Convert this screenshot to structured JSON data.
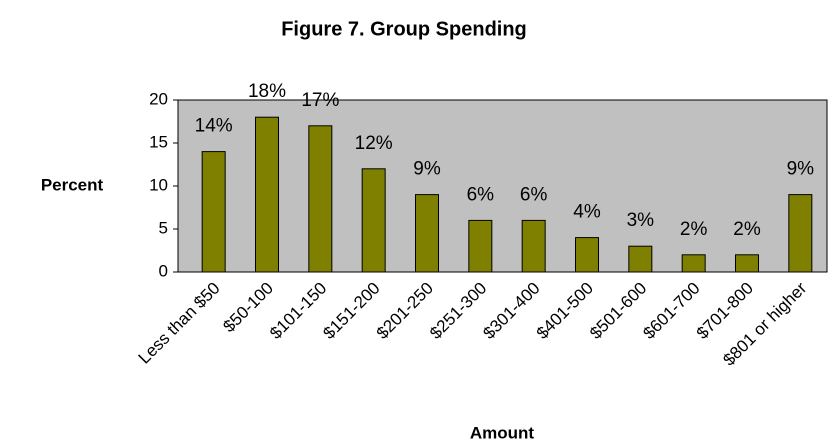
{
  "chart_data": {
    "type": "bar",
    "title": "Figure 7.  Group Spending",
    "x_label": "Amount",
    "y_label": "Percent",
    "categories": [
      "Less than $50",
      "$50-100",
      "$101-150",
      "$151-200",
      "$201-250",
      "$251-300",
      "$301-400",
      "$401-500",
      "$501-600",
      "$601-700",
      "$701-800",
      "$801 or higher"
    ],
    "values": [
      14,
      18,
      17,
      12,
      9,
      6,
      6,
      4,
      3,
      2,
      2,
      9
    ],
    "value_labels": [
      "14%",
      "18%",
      "17%",
      "12%",
      "9%",
      "6%",
      "6%",
      "4%",
      "3%",
      "2%",
      "2%",
      "9%"
    ],
    "color": "#808000",
    "ylim": [
      0,
      20
    ],
    "yticks": [
      0,
      5,
      10,
      15,
      20
    ],
    "grid": false
  }
}
